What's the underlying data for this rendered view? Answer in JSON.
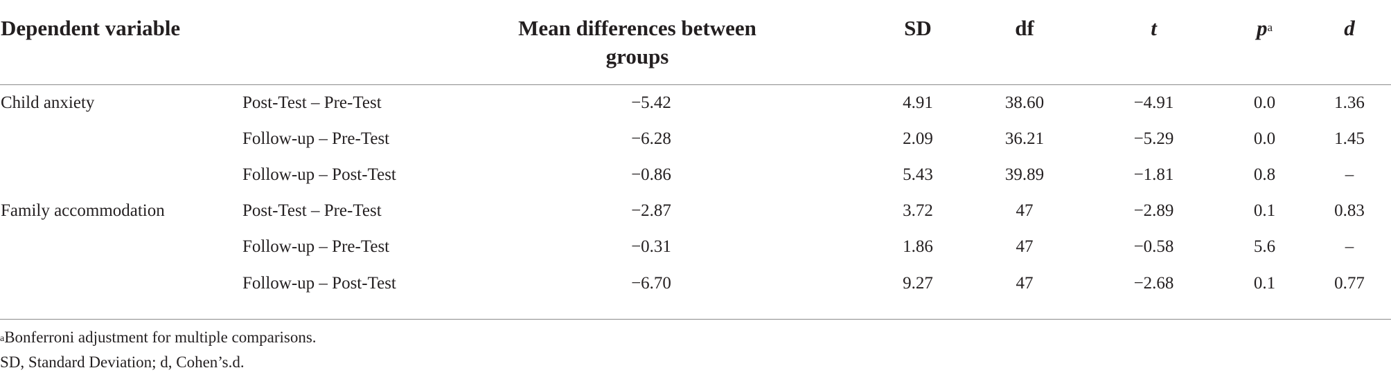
{
  "table": {
    "headers": {
      "dependent_variable": "Dependent variable",
      "mean_diff": "Mean differences between groups",
      "sd": "SD",
      "df": "df",
      "t": "t",
      "p": "p",
      "p_sup": "a",
      "d": "d"
    },
    "rows": [
      {
        "dv": "Child anxiety",
        "comparison": "Post-Test – Pre-Test",
        "mean_diff": "−5.42",
        "sd": "4.91",
        "df": "38.60",
        "t": "−4.91",
        "p": "0.0",
        "d": "1.36"
      },
      {
        "dv": "",
        "comparison": "Follow-up – Pre-Test",
        "mean_diff": "−6.28",
        "sd": "2.09",
        "df": "36.21",
        "t": "−5.29",
        "p": "0.0",
        "d": "1.45"
      },
      {
        "dv": "",
        "comparison": "Follow-up – Post-Test",
        "mean_diff": "−0.86",
        "sd": "5.43",
        "df": "39.89",
        "t": "−1.81",
        "p": "0.8",
        "d": "–"
      },
      {
        "dv": "Family accommodation",
        "comparison": "Post-Test – Pre-Test",
        "mean_diff": "−2.87",
        "sd": "3.72",
        "df": "47",
        "t": "−2.89",
        "p": "0.1",
        "d": "0.83"
      },
      {
        "dv": "",
        "comparison": "Follow-up – Pre-Test",
        "mean_diff": "−0.31",
        "sd": "1.86",
        "df": "47",
        "t": "−0.58",
        "p": "5.6",
        "d": "–"
      },
      {
        "dv": "",
        "comparison": "Follow-up – Post-Test",
        "mean_diff": "−6.70",
        "sd": "9.27",
        "df": "47",
        "t": "−2.68",
        "p": "0.1",
        "d": "0.77"
      }
    ]
  },
  "notes": {
    "footnote_marker": "a",
    "footnote_text": "Bonferroni adjustment for multiple comparisons.",
    "abbreviations": "SD, Standard Deviation; d, Cohen’s.d."
  }
}
